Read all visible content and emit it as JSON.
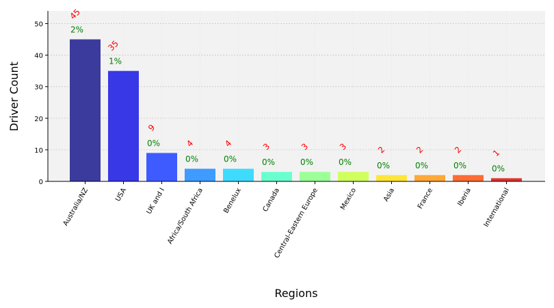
{
  "chart_data": {
    "type": "bar",
    "title": "",
    "xlabel": "Regions",
    "ylabel": "Driver Count",
    "categories": [
      "Australia/NZ",
      "USA",
      "UK and I",
      "Africa/South Africa",
      "Benelux",
      "Canada",
      "Central-Eastern Europe",
      "Mexico",
      "Asia",
      "France",
      "Iberia",
      "International"
    ],
    "values": [
      45,
      35,
      9,
      4,
      4,
      3,
      3,
      3,
      2,
      2,
      2,
      1
    ],
    "count_labels": [
      "45",
      "35",
      "9",
      "4",
      "4",
      "3",
      "3",
      "3",
      "2",
      "2",
      "2",
      "1"
    ],
    "percent_labels": [
      "2%",
      "1%",
      "0%",
      "0%",
      "0%",
      "0%",
      "0%",
      "0%",
      "0%",
      "0%",
      "0%",
      "0%"
    ],
    "bar_colors": [
      "#3b3b9e",
      "#3838e6",
      "#3e5bff",
      "#3f9bff",
      "#3fdbff",
      "#6affce",
      "#9dff98",
      "#d1ff5e",
      "#ffe53a",
      "#ffa838",
      "#ff6c34",
      "#e0332c"
    ],
    "count_label_color": "#ff0000",
    "percent_label_color": "#008000",
    "plot_background": "#f2f2f2",
    "ylim": [
      0,
      54
    ],
    "yticks": [
      0,
      10,
      20,
      30,
      40,
      50
    ],
    "grid": true,
    "legend": "none"
  }
}
